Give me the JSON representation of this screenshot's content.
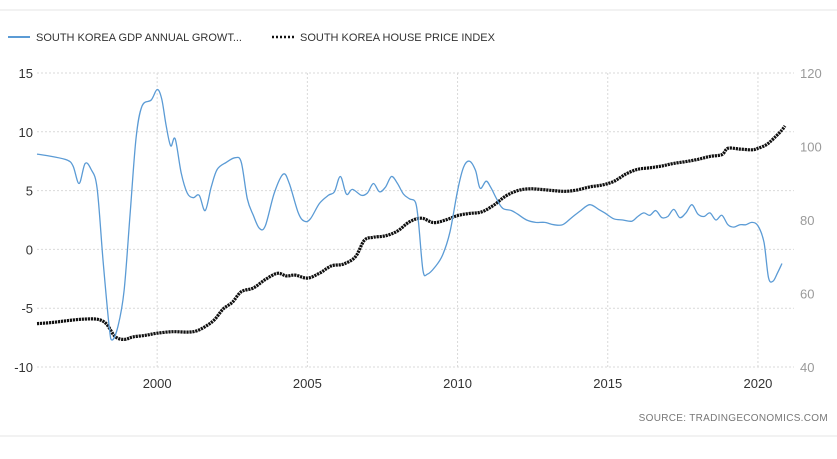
{
  "chart_data": {
    "type": "line",
    "legend_position": "top-left",
    "grid": true,
    "series": [
      {
        "name": "SOUTH KOREA GDP ANNUAL GROWT...",
        "axis": "left",
        "color": "#5b9bd5",
        "style": "solid",
        "points": [
          [
            1996.0,
            8.1
          ],
          [
            1996.5,
            7.9
          ],
          [
            1997.0,
            7.6
          ],
          [
            1997.2,
            7.1
          ],
          [
            1997.4,
            5.6
          ],
          [
            1997.6,
            7.3
          ],
          [
            1997.8,
            6.8
          ],
          [
            1998.0,
            5.2
          ],
          [
            1998.2,
            -1.0
          ],
          [
            1998.4,
            -6.5
          ],
          [
            1998.5,
            -7.7
          ],
          [
            1998.7,
            -6.5
          ],
          [
            1998.9,
            -3.5
          ],
          [
            1999.1,
            3.0
          ],
          [
            1999.3,
            9.5
          ],
          [
            1999.5,
            12.2
          ],
          [
            1999.8,
            12.7
          ],
          [
            2000.0,
            13.6
          ],
          [
            2000.15,
            12.8
          ],
          [
            2000.3,
            10.5
          ],
          [
            2000.45,
            8.8
          ],
          [
            2000.6,
            9.4
          ],
          [
            2000.8,
            6.5
          ],
          [
            2001.0,
            4.8
          ],
          [
            2001.2,
            4.4
          ],
          [
            2001.4,
            4.6
          ],
          [
            2001.6,
            3.3
          ],
          [
            2001.8,
            5.3
          ],
          [
            2002.0,
            6.8
          ],
          [
            2002.3,
            7.4
          ],
          [
            2002.6,
            7.8
          ],
          [
            2002.8,
            7.4
          ],
          [
            2003.0,
            4.3
          ],
          [
            2003.2,
            2.9
          ],
          [
            2003.4,
            1.8
          ],
          [
            2003.6,
            2.0
          ],
          [
            2003.9,
            4.8
          ],
          [
            2004.2,
            6.4
          ],
          [
            2004.4,
            5.6
          ],
          [
            2004.7,
            3.1
          ],
          [
            2004.9,
            2.4
          ],
          [
            2005.1,
            2.6
          ],
          [
            2005.4,
            3.9
          ],
          [
            2005.7,
            4.6
          ],
          [
            2005.9,
            4.9
          ],
          [
            2006.1,
            6.2
          ],
          [
            2006.3,
            4.7
          ],
          [
            2006.5,
            5.1
          ],
          [
            2006.8,
            4.6
          ],
          [
            2007.0,
            4.8
          ],
          [
            2007.2,
            5.6
          ],
          [
            2007.4,
            4.9
          ],
          [
            2007.6,
            5.3
          ],
          [
            2007.8,
            6.2
          ],
          [
            2008.0,
            5.6
          ],
          [
            2008.2,
            4.7
          ],
          [
            2008.4,
            4.3
          ],
          [
            2008.6,
            4.0
          ],
          [
            2008.7,
            2.3
          ],
          [
            2008.85,
            -1.8
          ],
          [
            2009.0,
            -2.1
          ],
          [
            2009.25,
            -1.5
          ],
          [
            2009.5,
            -0.5
          ],
          [
            2009.75,
            1.5
          ],
          [
            2010.0,
            5.0
          ],
          [
            2010.2,
            7.0
          ],
          [
            2010.4,
            7.5
          ],
          [
            2010.6,
            6.7
          ],
          [
            2010.75,
            5.2
          ],
          [
            2010.95,
            5.8
          ],
          [
            2011.1,
            5.3
          ],
          [
            2011.3,
            4.3
          ],
          [
            2011.5,
            3.5
          ],
          [
            2011.8,
            3.3
          ],
          [
            2012.0,
            3.0
          ],
          [
            2012.3,
            2.5
          ],
          [
            2012.6,
            2.3
          ],
          [
            2012.9,
            2.3
          ],
          [
            2013.2,
            2.1
          ],
          [
            2013.5,
            2.1
          ],
          [
            2013.8,
            2.7
          ],
          [
            2014.1,
            3.3
          ],
          [
            2014.4,
            3.8
          ],
          [
            2014.7,
            3.4
          ],
          [
            2014.9,
            3.1
          ],
          [
            2015.2,
            2.6
          ],
          [
            2015.5,
            2.5
          ],
          [
            2015.8,
            2.4
          ],
          [
            2016.0,
            2.8
          ],
          [
            2016.2,
            3.1
          ],
          [
            2016.4,
            2.9
          ],
          [
            2016.6,
            3.3
          ],
          [
            2016.8,
            2.7
          ],
          [
            2017.0,
            2.8
          ],
          [
            2017.2,
            3.4
          ],
          [
            2017.4,
            2.7
          ],
          [
            2017.6,
            3.1
          ],
          [
            2017.8,
            3.8
          ],
          [
            2018.0,
            3.0
          ],
          [
            2018.2,
            2.8
          ],
          [
            2018.4,
            3.1
          ],
          [
            2018.6,
            2.5
          ],
          [
            2018.8,
            2.9
          ],
          [
            2019.0,
            2.1
          ],
          [
            2019.2,
            1.9
          ],
          [
            2019.4,
            2.1
          ],
          [
            2019.6,
            2.1
          ],
          [
            2019.8,
            2.3
          ],
          [
            2020.0,
            2.0
          ],
          [
            2020.2,
            0.6
          ],
          [
            2020.35,
            -2.4
          ],
          [
            2020.5,
            -2.7
          ],
          [
            2020.65,
            -2.0
          ],
          [
            2020.8,
            -1.2
          ]
        ]
      },
      {
        "name": "SOUTH KOREA HOUSE PRICE INDEX",
        "axis": "right",
        "color": "#111111",
        "style": "dotted",
        "points": [
          [
            1996.0,
            51.8
          ],
          [
            1996.5,
            52.1
          ],
          [
            1997.0,
            52.6
          ],
          [
            1997.5,
            53.0
          ],
          [
            1998.0,
            53.0
          ],
          [
            1998.3,
            51.8
          ],
          [
            1998.6,
            48.3
          ],
          [
            1998.9,
            47.5
          ],
          [
            1999.2,
            48.2
          ],
          [
            1999.6,
            48.6
          ],
          [
            2000.0,
            49.2
          ],
          [
            2000.5,
            49.6
          ],
          [
            2001.0,
            49.5
          ],
          [
            2001.3,
            49.8
          ],
          [
            2001.6,
            51.0
          ],
          [
            2001.9,
            52.8
          ],
          [
            2002.2,
            55.8
          ],
          [
            2002.5,
            57.6
          ],
          [
            2002.8,
            60.5
          ],
          [
            2003.2,
            61.5
          ],
          [
            2003.6,
            63.8
          ],
          [
            2004.0,
            65.5
          ],
          [
            2004.3,
            64.8
          ],
          [
            2004.6,
            65.0
          ],
          [
            2005.0,
            64.2
          ],
          [
            2005.4,
            65.5
          ],
          [
            2005.8,
            67.5
          ],
          [
            2006.2,
            68.0
          ],
          [
            2006.6,
            70.0
          ],
          [
            2006.9,
            74.5
          ],
          [
            2007.2,
            75.3
          ],
          [
            2007.6,
            75.7
          ],
          [
            2008.0,
            77.0
          ],
          [
            2008.4,
            79.5
          ],
          [
            2008.8,
            80.5
          ],
          [
            2009.2,
            79.3
          ],
          [
            2009.6,
            80.0
          ],
          [
            2010.0,
            81.2
          ],
          [
            2010.4,
            81.8
          ],
          [
            2010.8,
            82.2
          ],
          [
            2011.2,
            84.0
          ],
          [
            2011.6,
            86.5
          ],
          [
            2012.0,
            88.0
          ],
          [
            2012.4,
            88.5
          ],
          [
            2012.8,
            88.3
          ],
          [
            2013.2,
            88.0
          ],
          [
            2013.6,
            87.8
          ],
          [
            2014.0,
            88.2
          ],
          [
            2014.4,
            89.0
          ],
          [
            2014.8,
            89.5
          ],
          [
            2015.2,
            90.5
          ],
          [
            2015.6,
            92.5
          ],
          [
            2016.0,
            93.8
          ],
          [
            2016.4,
            94.2
          ],
          [
            2016.8,
            94.7
          ],
          [
            2017.2,
            95.4
          ],
          [
            2017.6,
            95.9
          ],
          [
            2018.0,
            96.5
          ],
          [
            2018.4,
            97.3
          ],
          [
            2018.8,
            97.8
          ],
          [
            2019.0,
            99.5
          ],
          [
            2019.4,
            99.3
          ],
          [
            2019.8,
            99.1
          ],
          [
            2020.0,
            99.5
          ],
          [
            2020.3,
            100.6
          ],
          [
            2020.6,
            102.8
          ],
          [
            2020.8,
            104.5
          ],
          [
            2020.9,
            105.6
          ]
        ]
      }
    ],
    "x_axis": {
      "range": [
        1996,
        2021.2
      ],
      "ticks": [
        "2000",
        "2005",
        "2010",
        "2015",
        "2020"
      ]
    },
    "y_left": {
      "range": [
        -10,
        15
      ],
      "ticks": [
        "15",
        "10",
        "5",
        "0",
        "-5",
        "-10"
      ]
    },
    "y_right": {
      "range": [
        40,
        120
      ],
      "ticks": [
        "120",
        "100",
        "80",
        "60",
        "40"
      ]
    },
    "source": "SOURCE:  TRADINGECONOMICS.COM"
  }
}
